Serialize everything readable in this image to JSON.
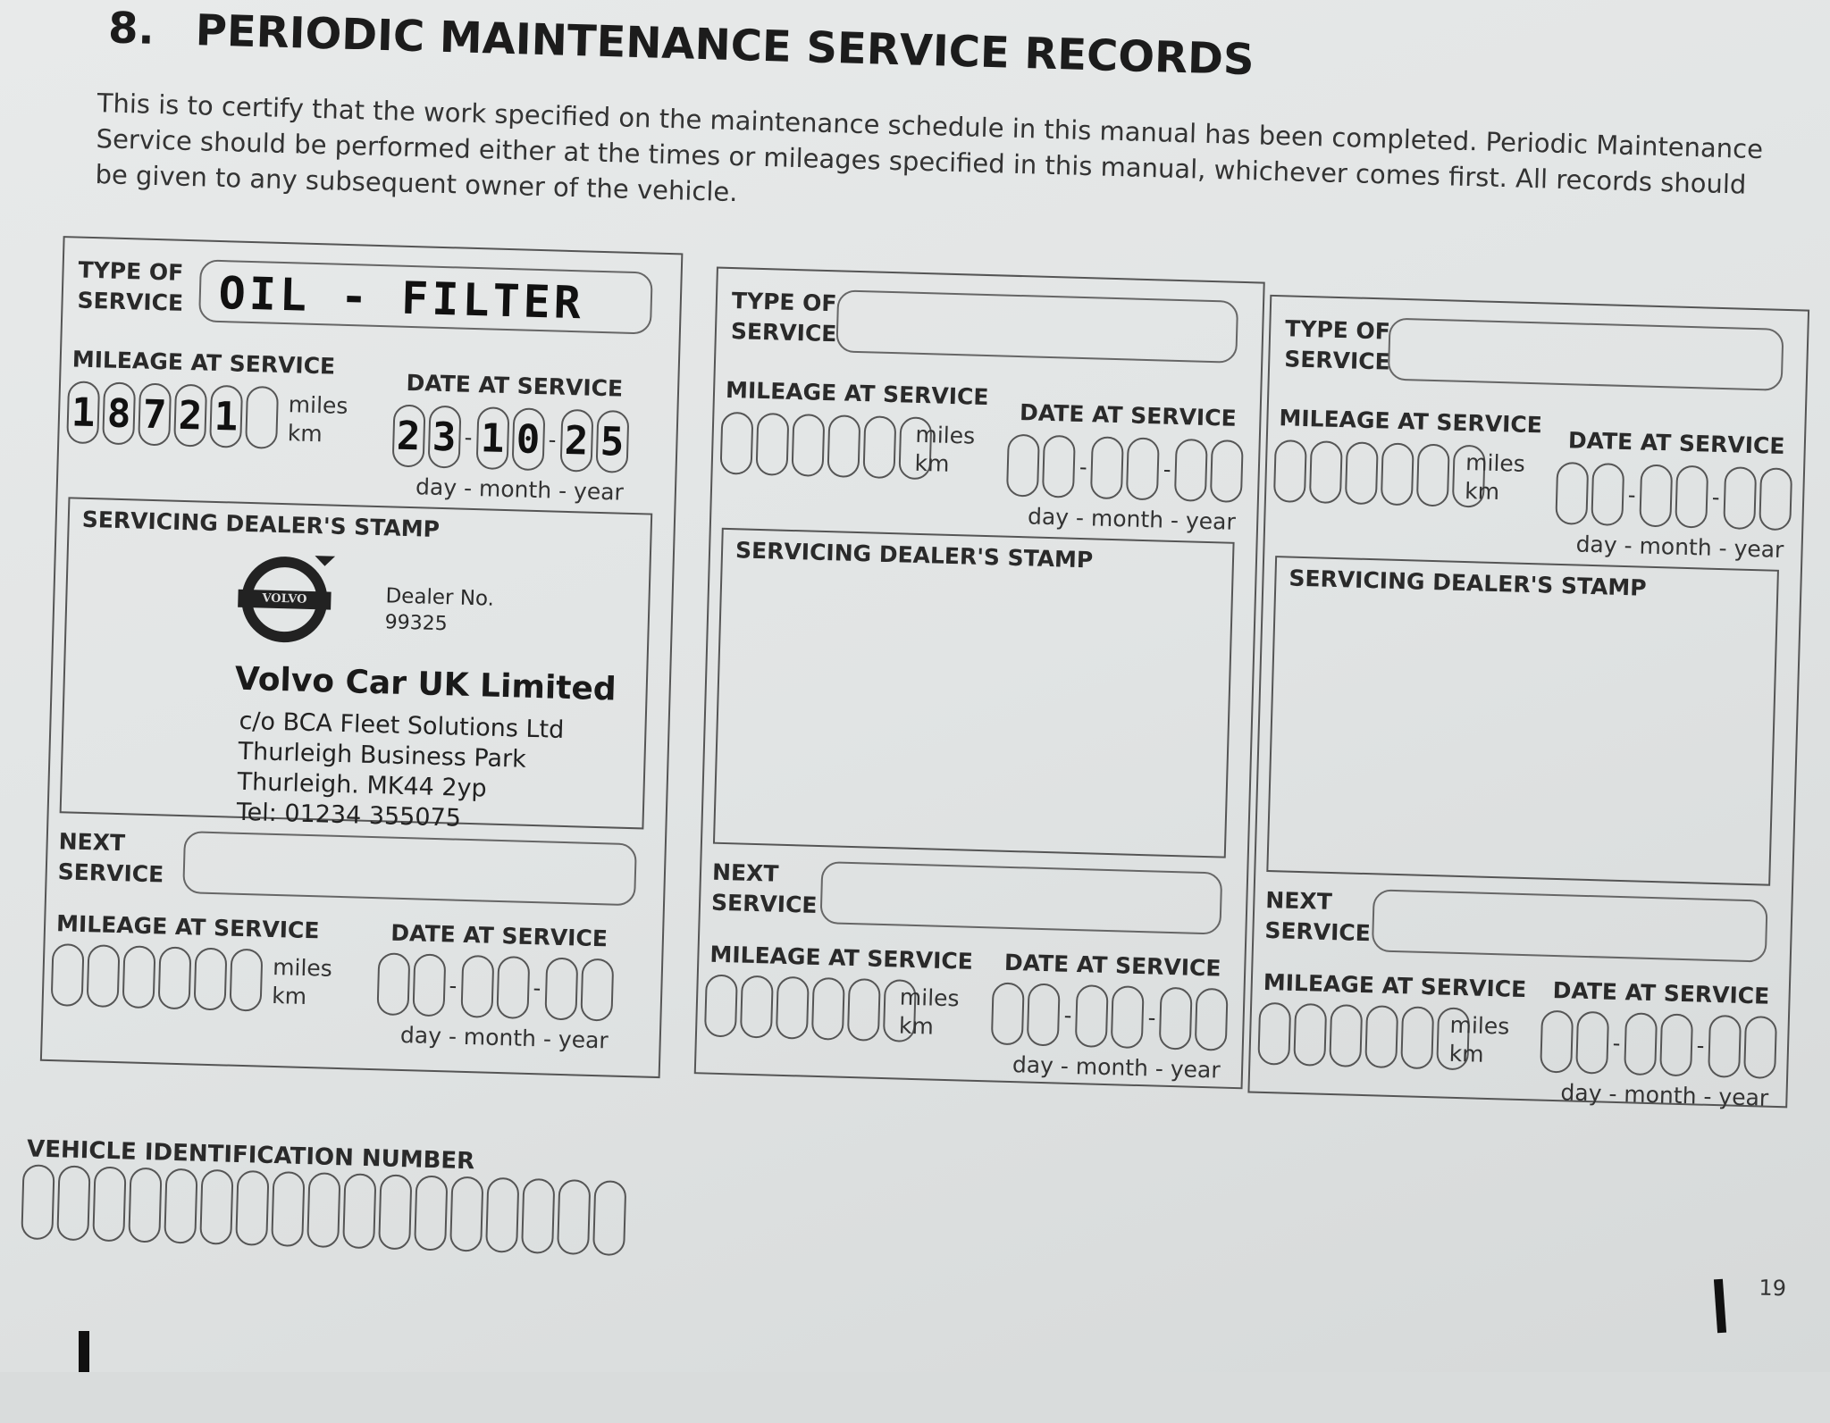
{
  "header": {
    "section_number": "8.",
    "title": "PERIODIC MAINTENANCE SERVICE RECORDS"
  },
  "intro": "This is to certify that the work specified on the maintenance schedule in this manual has been completed. Periodic Maintenance Service should be performed either at the times or mileages specified in this manual, whichever comes first. All records should be given to any subsequent owner of the vehicle.",
  "labels": {
    "type_of": "TYPE OF",
    "service": "SERVICE",
    "mileage_at_service": "MILEAGE AT SERVICE",
    "date_at_service": "DATE AT SERVICE",
    "miles": "miles",
    "km": "km",
    "date_format": "day - month - year",
    "dealer_stamp": "SERVICING DEALER'S STAMP",
    "next": "NEXT"
  },
  "records": [
    {
      "type_of_service": "OIL - FILTER",
      "mileage_digits": [
        "1",
        "8",
        "7",
        "2",
        "1",
        ""
      ],
      "date_digits": [
        "2",
        "3",
        "1",
        "0",
        "2",
        "5"
      ],
      "stamp": {
        "logo_text": "VOLVO",
        "dealer_no_label": "Dealer No.",
        "dealer_no": "99325",
        "company": "Volvo Car UK Limited",
        "address_lines": [
          "c/o BCA Fleet  Solutions Ltd",
          "Thurleigh Business Park",
          "Thurleigh. MK44 2yp",
          "Tel: 01234 355075"
        ]
      },
      "next_service": "",
      "next_mileage_digits": [
        "",
        "",
        "",
        "",
        "",
        ""
      ],
      "next_date_digits": [
        "",
        "",
        "",
        "",
        "",
        ""
      ]
    },
    {
      "type_of_service": "",
      "mileage_digits": [
        "",
        "",
        "",
        "",
        "",
        ""
      ],
      "date_digits": [
        "",
        "",
        "",
        "",
        "",
        ""
      ],
      "stamp": null,
      "next_service": "",
      "next_mileage_digits": [
        "",
        "",
        "",
        "",
        "",
        ""
      ],
      "next_date_digits": [
        "",
        "",
        "",
        "",
        "",
        ""
      ]
    },
    {
      "type_of_service": "",
      "mileage_digits": [
        "",
        "",
        "",
        "",
        "",
        ""
      ],
      "date_digits": [
        "",
        "",
        "",
        "",
        "",
        ""
      ],
      "stamp": null,
      "next_service": "",
      "next_mileage_digits": [
        "",
        "",
        "",
        "",
        "",
        ""
      ],
      "next_date_digits": [
        "",
        "",
        "",
        "",
        "",
        ""
      ]
    }
  ],
  "vin": {
    "label": "VEHICLE IDENTIFICATION NUMBER",
    "box_count": 17,
    "value": ""
  },
  "page_number": "19"
}
